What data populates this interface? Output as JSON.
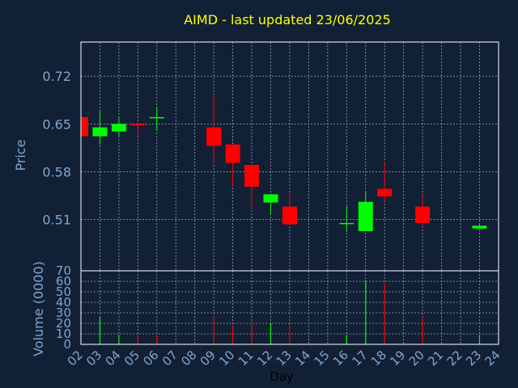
{
  "colors": {
    "background": "#112035",
    "title": "#ffff00",
    "axis_text": "#7fa6cf",
    "frame": "#ffffff",
    "grid": "#9aa6b2",
    "up": "#00ff00",
    "down": "#ff0000"
  },
  "chart_data": {
    "type": "candlestick",
    "title": "AIMD - last updated 23/06/2025",
    "xlabel": "Day",
    "x_ticks": [
      "02",
      "03",
      "04",
      "05",
      "06",
      "07",
      "08",
      "09",
      "10",
      "11",
      "12",
      "13",
      "14",
      "15",
      "16",
      "17",
      "18",
      "19",
      "20",
      "21",
      "22",
      "23",
      "24"
    ],
    "price_panel": {
      "ylabel": "Price",
      "ylim": [
        0.435,
        0.77
      ],
      "y_ticks": [
        "0.72",
        "0.65",
        "0.58",
        "0.51"
      ],
      "y_tick_values": [
        0.72,
        0.65,
        0.58,
        0.51
      ],
      "grid": true,
      "candles": [
        {
          "day": "02",
          "open": 0.66,
          "high": 0.66,
          "low": 0.632,
          "close": 0.632
        },
        {
          "day": "03",
          "open": 0.632,
          "high": 0.67,
          "low": 0.62,
          "close": 0.645
        },
        {
          "day": "04",
          "open": 0.639,
          "high": 0.66,
          "low": 0.632,
          "close": 0.65
        },
        {
          "day": "05",
          "open": 0.65,
          "high": 0.652,
          "low": 0.632,
          "close": 0.648
        },
        {
          "day": "06",
          "open": 0.66,
          "high": 0.675,
          "low": 0.64,
          "close": 0.66
        },
        {
          "day": "09",
          "open": 0.645,
          "high": 0.69,
          "low": 0.593,
          "close": 0.618
        },
        {
          "day": "10",
          "open": 0.62,
          "high": 0.62,
          "low": 0.56,
          "close": 0.593
        },
        {
          "day": "11",
          "open": 0.59,
          "high": 0.59,
          "low": 0.527,
          "close": 0.558
        },
        {
          "day": "12",
          "open": 0.535,
          "high": 0.548,
          "low": 0.518,
          "close": 0.547
        },
        {
          "day": "13",
          "open": 0.529,
          "high": 0.55,
          "low": 0.503,
          "close": 0.503
        },
        {
          "day": "16",
          "open": 0.505,
          "high": 0.53,
          "low": 0.492,
          "close": 0.505
        },
        {
          "day": "17",
          "open": 0.493,
          "high": 0.55,
          "low": 0.493,
          "close": 0.536
        },
        {
          "day": "18",
          "open": 0.555,
          "high": 0.594,
          "low": 0.537,
          "close": 0.544
        },
        {
          "day": "20",
          "open": 0.529,
          "high": 0.546,
          "low": 0.497,
          "close": 0.505
        },
        {
          "day": "23",
          "open": 0.497,
          "high": 0.504,
          "low": 0.497,
          "close": 0.501
        }
      ]
    },
    "volume_panel": {
      "ylabel": "Volume (0000)",
      "ylim": [
        0,
        70
      ],
      "y_ticks": [
        "0",
        "10",
        "20",
        "30",
        "40",
        "50",
        "60",
        "70"
      ],
      "y_tick_values": [
        0,
        10,
        20,
        30,
        40,
        50,
        60,
        70
      ],
      "grid": true,
      "bars": [
        {
          "day": "03",
          "value": 26,
          "direction": "up"
        },
        {
          "day": "04",
          "value": 9,
          "direction": "up"
        },
        {
          "day": "05",
          "value": 9,
          "direction": "down"
        },
        {
          "day": "06",
          "value": 8,
          "direction": "down"
        },
        {
          "day": "09",
          "value": 26,
          "direction": "down"
        },
        {
          "day": "10",
          "value": 17,
          "direction": "down"
        },
        {
          "day": "11",
          "value": 21,
          "direction": "down"
        },
        {
          "day": "12",
          "value": 20,
          "direction": "up"
        },
        {
          "day": "13",
          "value": 19,
          "direction": "down"
        },
        {
          "day": "16",
          "value": 9,
          "direction": "up"
        },
        {
          "day": "17",
          "value": 61,
          "direction": "up"
        },
        {
          "day": "18",
          "value": 58,
          "direction": "down"
        },
        {
          "day": "20",
          "value": 26,
          "direction": "down"
        },
        {
          "day": "23",
          "value": 9,
          "direction": "up"
        }
      ]
    }
  }
}
